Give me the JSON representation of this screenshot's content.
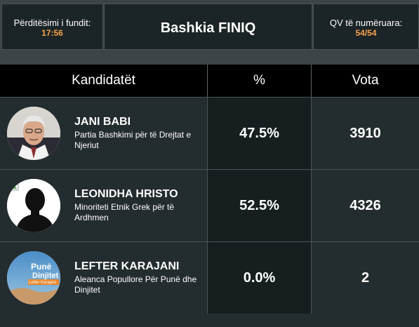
{
  "header": {
    "updated_label": "Përditësimi i fundit:",
    "updated_time": "17:56",
    "title": "Bashkia FINIQ",
    "counted_label": "QV të numëruara:",
    "counted_value": "54/54"
  },
  "table": {
    "headers": [
      "Kandidatët",
      "%",
      "Vota"
    ],
    "rows": [
      {
        "name": "JANI BABI",
        "party": "Partia Bashkimi për të Drejtat e Njeriut",
        "percent": "47.5%",
        "votes": "3910",
        "avatar": "portrait-photo"
      },
      {
        "name": "LEONIDHA HRISTO",
        "party": "Minoriteti Etnik Grek për të Ardhmen",
        "percent": "52.5%",
        "votes": "4326",
        "avatar": "silhouette-placeholder"
      },
      {
        "name": "LEFTER KARAJANI",
        "party": "Aleanca Popullore Për Punë dhe Dinjitet",
        "percent": "0.0%",
        "votes": "2",
        "avatar": "campaign-poster"
      }
    ]
  },
  "avatar_texts": {
    "poster_line1": "Punë",
    "poster_line2": "Dinjitet",
    "poster_line3": "Lefter Karajani"
  },
  "colors": {
    "accent": "#f5a04a",
    "background": "#3d4447",
    "header_bg": "#000000",
    "row_bg": "#232c2e",
    "pct_bg": "#161e20"
  }
}
